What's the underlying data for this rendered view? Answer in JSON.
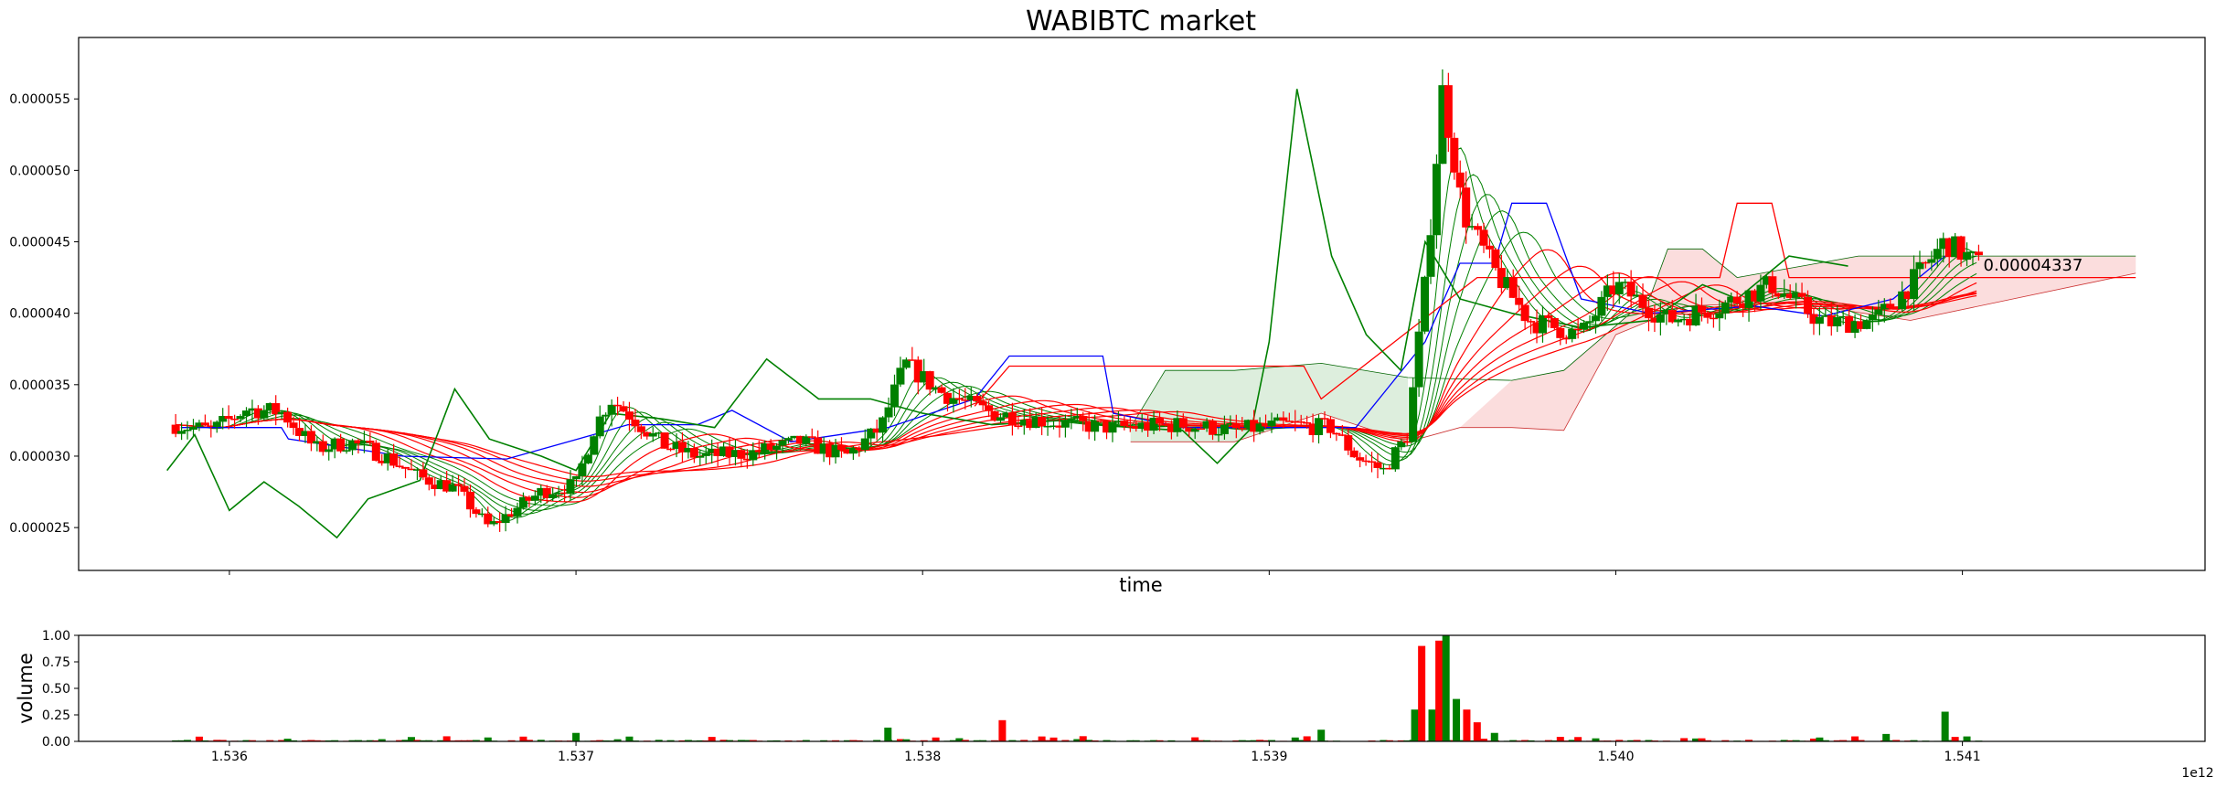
{
  "chart_data": [
    {
      "type": "candlestick",
      "title": "WABIBTC market",
      "xlabel": "time",
      "ylabel": "",
      "xlim": [
        1535565000000,
        1541700000000
      ],
      "ylim": [
        2.2e-05,
        5.93e-05
      ],
      "x_ticks": [
        1536000000000,
        1537000000000,
        1538000000000,
        1539000000000,
        1540000000000,
        1541000000000
      ],
      "y_ticks": [
        2.5e-05,
        3e-05,
        3.5e-05,
        4e-05,
        4.5e-05,
        5e-05,
        5.5e-05
      ],
      "y_tick_labels": [
        "0.000025",
        "0.000030",
        "0.000035",
        "0.000040",
        "0.000045",
        "0.000050",
        "0.000055"
      ],
      "x_tick_labels": [
        "",
        "",
        "",
        "",
        "",
        ""
      ],
      "last_price_label": "0.00004337",
      "last_price": 4.337e-05,
      "colors": {
        "up": "#008000",
        "down": "#ff0000",
        "ma": "#ff0000",
        "ema_green": "#008000",
        "line_blue": "#0000ff",
        "cloud_green": "#d9ecd9",
        "cloud_red": "#fbd9d9"
      },
      "close_path": [
        [
          1535845000000,
          3.22e-05
        ],
        [
          1535950000000,
          3.18e-05
        ],
        [
          1536050000000,
          3.33e-05
        ],
        [
          1536150000000,
          3.31e-05
        ],
        [
          1536250000000,
          3.05e-05
        ],
        [
          1536350000000,
          3.1e-05
        ],
        [
          1536450000000,
          3e-05
        ],
        [
          1536550000000,
          2.85e-05
        ],
        [
          1536650000000,
          2.78e-05
        ],
        [
          1536750000000,
          2.5e-05
        ],
        [
          1536820000000,
          2.62e-05
        ],
        [
          1536900000000,
          2.75e-05
        ],
        [
          1537000000000,
          2.8e-05
        ],
        [
          1537050000000,
          3.18e-05
        ],
        [
          1537100000000,
          3.4e-05
        ],
        [
          1537150000000,
          3.3e-05
        ],
        [
          1537250000000,
          3.08e-05
        ],
        [
          1537350000000,
          3e-05
        ],
        [
          1537500000000,
          3.02e-05
        ],
        [
          1537650000000,
          3.1e-05
        ],
        [
          1537780000000,
          3e-05
        ],
        [
          1537880000000,
          3.2e-05
        ],
        [
          1537950000000,
          3.65e-05
        ],
        [
          1538050000000,
          3.45e-05
        ],
        [
          1538200000000,
          3.3e-05
        ],
        [
          1538400000000,
          3.23e-05
        ],
        [
          1538550000000,
          3.2e-05
        ],
        [
          1538750000000,
          3.22e-05
        ],
        [
          1538900000000,
          3.18e-05
        ],
        [
          1539050000000,
          3.22e-05
        ],
        [
          1539180000000,
          3.2e-05
        ],
        [
          1539250000000,
          3e-05
        ],
        [
          1539330000000,
          2.9e-05
        ],
        [
          1539400000000,
          3.15e-05
        ],
        [
          1539450000000,
          4.2e-05
        ],
        [
          1539500000000,
          5.55e-05
        ],
        [
          1539560000000,
          4.7e-05
        ],
        [
          1539650000000,
          4.3e-05
        ],
        [
          1539750000000,
          3.95e-05
        ],
        [
          1539900000000,
          3.85e-05
        ],
        [
          1540000000000,
          4.2e-05
        ],
        [
          1540150000000,
          3.95e-05
        ],
        [
          1540300000000,
          4.05e-05
        ],
        [
          1540450000000,
          4.2e-05
        ],
        [
          1540600000000,
          3.93e-05
        ],
        [
          1540750000000,
          3.95e-05
        ],
        [
          1540850000000,
          4.2e-05
        ],
        [
          1540950000000,
          4.5e-05
        ],
        [
          1541050000000,
          4.337e-05
        ]
      ],
      "green_line_path": [
        [
          1535820000000,
          2.9e-05
        ],
        [
          1535900000000,
          3.15e-05
        ],
        [
          1536000000000,
          2.62e-05
        ],
        [
          1536100000000,
          2.82e-05
        ],
        [
          1536200000000,
          2.65e-05
        ],
        [
          1536310000000,
          2.43e-05
        ],
        [
          1536400000000,
          2.7e-05
        ],
        [
          1536550000000,
          2.83e-05
        ],
        [
          1536650000000,
          3.47e-05
        ],
        [
          1536750000000,
          3.12e-05
        ],
        [
          1536900000000,
          3e-05
        ],
        [
          1537000000000,
          2.9e-05
        ],
        [
          1537100000000,
          3.3e-05
        ],
        [
          1537250000000,
          3.26e-05
        ],
        [
          1537400000000,
          3.2e-05
        ],
        [
          1537550000000,
          3.68e-05
        ],
        [
          1537700000000,
          3.4e-05
        ],
        [
          1537850000000,
          3.4e-05
        ],
        [
          1538000000000,
          3.3e-05
        ],
        [
          1538200000000,
          3.22e-05
        ],
        [
          1538400000000,
          3.25e-05
        ],
        [
          1538600000000,
          3.2e-05
        ],
        [
          1538750000000,
          3.18e-05
        ],
        [
          1538850000000,
          2.95e-05
        ],
        [
          1538950000000,
          3.2e-05
        ],
        [
          1539000000000,
          3.8e-05
        ],
        [
          1539080000000,
          5.57e-05
        ],
        [
          1539180000000,
          4.4e-05
        ],
        [
          1539280000000,
          3.85e-05
        ],
        [
          1539380000000,
          3.6e-05
        ],
        [
          1539450000000,
          4.5e-05
        ],
        [
          1539550000000,
          4.1e-05
        ],
        [
          1539700000000,
          4e-05
        ],
        [
          1539900000000,
          3.9e-05
        ],
        [
          1540100000000,
          3.95e-05
        ],
        [
          1540250000000,
          4.2e-05
        ],
        [
          1540350000000,
          4.1e-05
        ],
        [
          1540500000000,
          4.4e-05
        ],
        [
          1540670000000,
          4.33e-05
        ]
      ],
      "blue_line_path": [
        [
          1535860000000,
          3.2e-05
        ],
        [
          1536150000000,
          3.2e-05
        ],
        [
          1536170000000,
          3.12e-05
        ],
        [
          1536500000000,
          3e-05
        ],
        [
          1536800000000,
          2.98e-05
        ],
        [
          1537050000000,
          3.15e-05
        ],
        [
          1537150000000,
          3.22e-05
        ],
        [
          1537350000000,
          3.22e-05
        ],
        [
          1537450000000,
          3.32e-05
        ],
        [
          1537620000000,
          3.1e-05
        ],
        [
          1537900000000,
          3.2e-05
        ],
        [
          1538150000000,
          3.4e-05
        ],
        [
          1538250000000,
          3.7e-05
        ],
        [
          1538520000000,
          3.7e-05
        ],
        [
          1538550000000,
          3.3e-05
        ],
        [
          1538750000000,
          3.2e-05
        ],
        [
          1539250000000,
          3.2e-05
        ],
        [
          1539450000000,
          3.8e-05
        ],
        [
          1539550000000,
          4.35e-05
        ],
        [
          1539650000000,
          4.35e-05
        ],
        [
          1539700000000,
          4.77e-05
        ],
        [
          1539800000000,
          4.77e-05
        ],
        [
          1539900000000,
          4.1e-05
        ],
        [
          1540100000000,
          4e-05
        ],
        [
          1540400000000,
          4.05e-05
        ],
        [
          1540600000000,
          3.98e-05
        ],
        [
          1540800000000,
          4.1e-05
        ],
        [
          1540950000000,
          4.4e-05
        ]
      ],
      "red_line_path": [
        [
          1538150000000,
          3.35e-05
        ],
        [
          1538250000000,
          3.63e-05
        ],
        [
          1539100000000,
          3.63e-05
        ],
        [
          1539150000000,
          3.4e-05
        ],
        [
          1539600000000,
          4.25e-05
        ],
        [
          1540300000000,
          4.25e-05
        ],
        [
          1540350000000,
          4.77e-05
        ],
        [
          1540450000000,
          4.77e-05
        ],
        [
          1540500000000,
          4.25e-05
        ],
        [
          1541500000000,
          4.25e-05
        ]
      ],
      "cloud_path_top": [
        [
          1538600000000,
          3.2e-05
        ],
        [
          1538700000000,
          3.6e-05
        ],
        [
          1538900000000,
          3.6e-05
        ],
        [
          1539150000000,
          3.65e-05
        ],
        [
          1539400000000,
          3.55e-05
        ],
        [
          1539700000000,
          3.53e-05
        ],
        [
          1539850000000,
          3.6e-05
        ],
        [
          1540100000000,
          4.12e-05
        ],
        [
          1540150000000,
          4.45e-05
        ],
        [
          1540250000000,
          4.45e-05
        ],
        [
          1540350000000,
          4.25e-05
        ],
        [
          1540700000000,
          4.4e-05
        ],
        [
          1541500000000,
          4.4e-05
        ]
      ],
      "cloud_path_bottom": [
        [
          1538600000000,
          3.1e-05
        ],
        [
          1538900000000,
          3.1e-05
        ],
        [
          1539150000000,
          3.3e-05
        ],
        [
          1539400000000,
          3.1e-05
        ],
        [
          1539550000000,
          3.2e-05
        ],
        [
          1539700000000,
          3.2e-05
        ],
        [
          1539850000000,
          3.18e-05
        ],
        [
          1540000000000,
          3.85e-05
        ],
        [
          1540200000000,
          4.05e-05
        ],
        [
          1540500000000,
          4.08e-05
        ],
        [
          1540850000000,
          3.95e-05
        ],
        [
          1541500000000,
          4.28e-05
        ]
      ]
    },
    {
      "type": "bar",
      "title": "",
      "xlabel": "",
      "ylabel": "volume",
      "xlim": [
        1535565000000,
        1541700000000
      ],
      "ylim": [
        0,
        1
      ],
      "y_ticks": [
        0,
        0.25,
        0.5,
        0.75,
        1
      ],
      "y_tick_labels": [
        "0.00",
        "0.25",
        "0.50",
        "0.75",
        "1.00"
      ],
      "x_ticks": [
        1536000000000,
        1537000000000,
        1538000000000,
        1539000000000,
        1540000000000,
        1541000000000
      ],
      "x_tick_labels": [
        "1.536",
        "1.537",
        "1.538",
        "1.539",
        "1.540",
        "1.541"
      ],
      "offset_label": "1e12",
      "bars": [
        {
          "x": 1537000000000,
          "v": 0.08,
          "c": "green"
        },
        {
          "x": 1537900000000,
          "v": 0.13,
          "c": "green"
        },
        {
          "x": 1538230000000,
          "v": 0.2,
          "c": "red"
        },
        {
          "x": 1539150000000,
          "v": 0.11,
          "c": "green"
        },
        {
          "x": 1539420000000,
          "v": 0.3,
          "c": "green"
        },
        {
          "x": 1539440000000,
          "v": 0.9,
          "c": "red"
        },
        {
          "x": 1539470000000,
          "v": 0.3,
          "c": "green"
        },
        {
          "x": 1539490000000,
          "v": 0.95,
          "c": "red"
        },
        {
          "x": 1539510000000,
          "v": 1.0,
          "c": "green"
        },
        {
          "x": 1539540000000,
          "v": 0.4,
          "c": "green"
        },
        {
          "x": 1539570000000,
          "v": 0.3,
          "c": "red"
        },
        {
          "x": 1539600000000,
          "v": 0.18,
          "c": "red"
        },
        {
          "x": 1539650000000,
          "v": 0.08,
          "c": "green"
        },
        {
          "x": 1540950000000,
          "v": 0.28,
          "c": "green"
        },
        {
          "x": 1540780000000,
          "v": 0.07,
          "c": "green"
        }
      ]
    }
  ]
}
